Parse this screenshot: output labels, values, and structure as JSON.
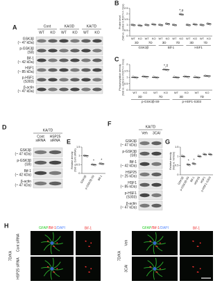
{
  "panels": {
    "A": {
      "label": "A",
      "groups": [
        "Cont",
        "KA/3D",
        "KA/7D"
      ],
      "lanes": [
        "WT",
        "KO",
        "WT",
        "KO",
        "WT",
        "KO"
      ],
      "rows": [
        [
          "GSK3β",
          "(~ 47 kDa)"
        ],
        [
          "p-GSK3β",
          "(S9)"
        ],
        [
          "Bif-1",
          "(~ 42 kDa)"
        ],
        [
          "HSF1",
          "(~ 85 kDa)"
        ],
        [
          "p-HSF1",
          "(S303)"
        ],
        [
          "β-actin",
          "(~ 47 kDa)"
        ]
      ]
    },
    "D": {
      "label": "D",
      "header": "KA/7D",
      "lanes": [
        [
          "Cont",
          "siRNA"
        ],
        [
          "HSP25",
          "siRNA"
        ]
      ],
      "rows": [
        [
          "GSK3β",
          "(~ 47 kDa)"
        ],
        [
          "p-GSK3β",
          "(S9)"
        ],
        [
          "Bif-1",
          "(~ 42 kDa)"
        ],
        [
          "β-actin",
          "(~ 47 kDa)"
        ]
      ]
    },
    "F": {
      "label": "F",
      "header": "KA/7D",
      "lanes": [
        [
          "Veh"
        ],
        [
          "3CAI"
        ]
      ],
      "rows": [
        [
          "GSK3β",
          "(~ 47 kDa)"
        ],
        [
          "p-GSK3β",
          "(S9)"
        ],
        [
          "Bif-1",
          "(~ 42 kDa)"
        ],
        [
          "HSP25",
          "(~ 25 kDa)"
        ],
        [
          "HSF1",
          "(~ 85 kDa)"
        ],
        [
          "p-HSF1",
          "(S303)"
        ],
        [
          "β-actin",
          "(~ 47 kDa)"
        ]
      ]
    },
    "H": {
      "label": "H",
      "stain": [
        "GFAP",
        "/Bif-1",
        "/DAPI"
      ],
      "channel": "Bif-1",
      "condition": "7D/KA",
      "left_rows": [
        "Cont siRNA",
        "HSP25 siRNA"
      ],
      "right_rows": [
        "Veh",
        "3CAI"
      ]
    }
  },
  "chart_data": [
    {
      "type": "dot",
      "panel": "B",
      "ylabel": [
        "Protein level",
        "(fold vs. control in P2X7+/+ mice)"
      ],
      "ylim": [
        0,
        2.5
      ],
      "yticks": [
        0,
        0.5,
        1,
        1.5,
        2,
        2.5
      ],
      "categories": [
        "WT",
        "KO",
        "WT",
        "KO",
        "WT",
        "KO",
        "WT",
        "KO",
        "WT",
        "KO",
        "WT",
        "KO"
      ],
      "periods": [
        "3D",
        "7D",
        "3D",
        "7D",
        "3D",
        "7D"
      ],
      "groups": [
        "GSK3β",
        "Bif-1",
        "HSF1"
      ],
      "values": [
        1,
        0.95,
        1,
        1.05,
        1,
        1.1,
        1,
        1.95,
        1,
        1.05,
        1,
        1.1
      ],
      "marks": [
        null,
        null,
        null,
        null,
        null,
        null,
        null,
        "*,#",
        null,
        null,
        null,
        null
      ],
      "color": "#555"
    },
    {
      "type": "dot",
      "panel": "C",
      "ylabel": [
        "Phosphorylation density",
        "(fold vs. control in P2X7+/+ mice)"
      ],
      "ylim": [
        0,
        2
      ],
      "yticks": [
        0,
        0.5,
        1,
        1.5,
        2
      ],
      "categories": [
        "WT",
        "KO",
        "WT",
        "KO",
        "WT",
        "KO",
        "WT",
        "KO"
      ],
      "periods": [
        "3D",
        "7D",
        "3D",
        "7D"
      ],
      "groups": [
        "p-GSK3β-S9",
        "p-HSF1-S303"
      ],
      "values": [
        1,
        1.05,
        1,
        1.6,
        1,
        1.05,
        1,
        1.1
      ],
      "marks": [
        null,
        null,
        null,
        "*,#",
        null,
        null,
        null,
        null
      ],
      "color": "#555"
    },
    {
      "type": "dot",
      "panel": "E",
      "ylabel": [
        "Relative density",
        "(fold vs. Cont siRNA)"
      ],
      "ylim": [
        0,
        1.5
      ],
      "yticks": [
        0,
        0.5,
        1,
        1.5
      ],
      "categories": [
        "GSK3β",
        "p-GSK3β-S9",
        "Bif-1"
      ],
      "values": [
        1,
        0.5,
        0.55
      ],
      "marks": [
        null,
        "*",
        "*"
      ],
      "color": "#555"
    },
    {
      "type": "dot",
      "panel": "G",
      "ylabel": [
        "Relative density",
        "(fold vs. Vehicle)"
      ],
      "ylim": [
        0,
        1.5
      ],
      "yticks": [
        0,
        0.5,
        1,
        1.5
      ],
      "categories": [
        "GSK3β",
        "p-GSK3β-S9",
        "Bif-1",
        "HSP25",
        "HSF1",
        "p-HSF1-S303"
      ],
      "values": [
        1,
        0.55,
        0.6,
        1,
        1.1,
        1.1
      ],
      "marks": [
        null,
        "*",
        "*",
        null,
        null,
        null
      ],
      "color": "#555"
    }
  ]
}
